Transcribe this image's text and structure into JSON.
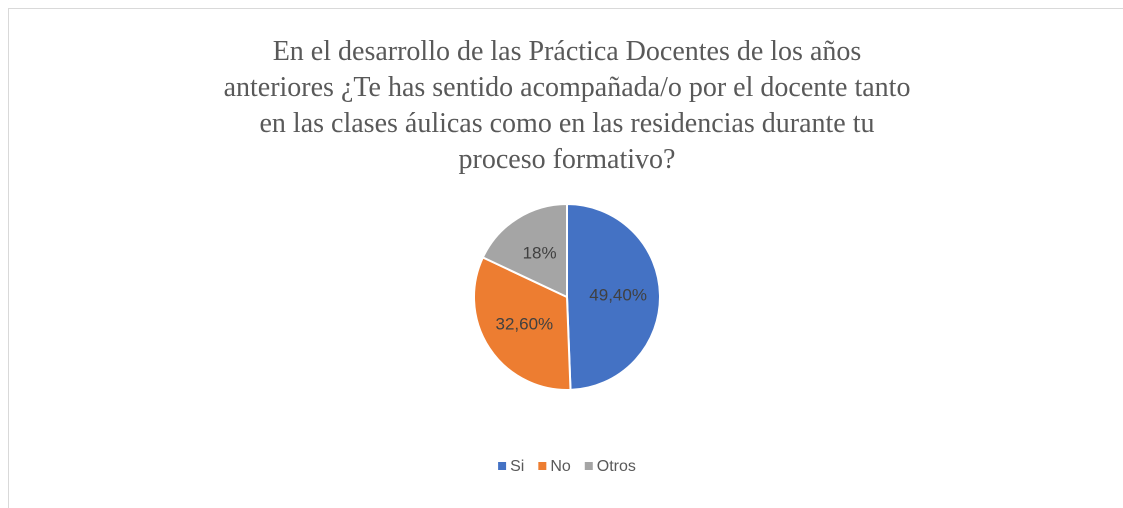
{
  "chart_data": {
    "type": "pie",
    "title": "En el desarrollo de las Práctica Docentes de los años anteriores ¿Te has sentido acompañada/o por el docente tanto en las clases áulicas como en las residencias durante tu proceso formativo?",
    "categories": [
      "Si",
      "No",
      "Otros"
    ],
    "values": [
      49.4,
      32.6,
      18
    ],
    "value_labels": [
      "49,40%",
      "32,60%",
      "18%"
    ],
    "colors": [
      "#4472c4",
      "#ed7d31",
      "#a5a5a5"
    ],
    "legend": "bottom"
  }
}
